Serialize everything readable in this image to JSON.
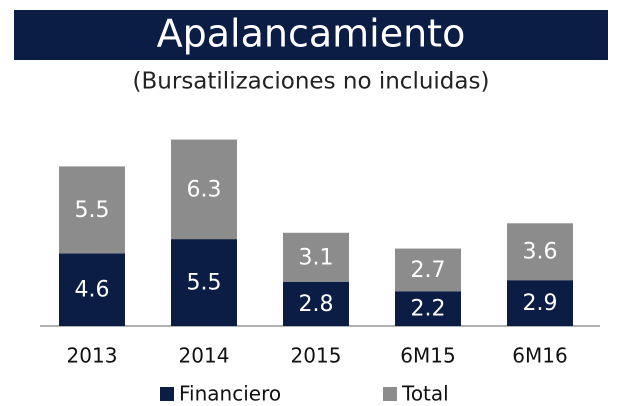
{
  "chart_data": {
    "type": "stacked_bar",
    "title": "Apalancamiento",
    "subtitle": "(Bursatilizaciones no incluidas)",
    "categories": [
      "2013",
      "2014",
      "2015",
      "6M15",
      "6M16"
    ],
    "series": [
      {
        "name": "Financiero",
        "color": "#0b1d45",
        "values": [
          4.6,
          5.5,
          2.8,
          2.2,
          2.9
        ]
      },
      {
        "name": "Total",
        "color": "#8c8c8c",
        "values": [
          5.5,
          6.3,
          3.1,
          2.7,
          3.6
        ]
      }
    ]
  }
}
